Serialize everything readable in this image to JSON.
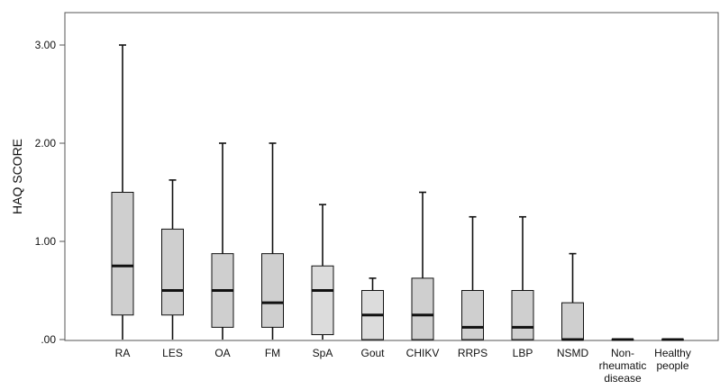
{
  "chart_data": {
    "type": "boxplot",
    "ylabel": "HAQ SCORE",
    "xlabel": "",
    "ylim": [
      0,
      3.4
    ],
    "yticks": [
      0,
      1,
      2,
      3
    ],
    "ytick_labels": [
      ".00",
      "1.00",
      "2.00",
      "3.00"
    ],
    "grid": false,
    "categories": [
      {
        "label_lines": [
          "RA"
        ]
      },
      {
        "label_lines": [
          "LES"
        ]
      },
      {
        "label_lines": [
          "OA"
        ]
      },
      {
        "label_lines": [
          "FM"
        ]
      },
      {
        "label_lines": [
          "SpA"
        ]
      },
      {
        "label_lines": [
          "Gout"
        ]
      },
      {
        "label_lines": [
          "CHIKV"
        ]
      },
      {
        "label_lines": [
          "RRPS"
        ]
      },
      {
        "label_lines": [
          "LBP"
        ]
      },
      {
        "label_lines": [
          "NSMD"
        ]
      },
      {
        "label_lines": [
          "Non-",
          "rheumatic",
          "disease"
        ]
      },
      {
        "label_lines": [
          "Healthy",
          "people"
        ]
      }
    ],
    "boxes": [
      {
        "min": 0,
        "q1": 0.25,
        "median": 0.75,
        "q3": 1.5,
        "max": 3.0
      },
      {
        "min": 0,
        "q1": 0.25,
        "median": 0.5,
        "q3": 1.125,
        "max": 1.625
      },
      {
        "min": 0,
        "q1": 0.125,
        "median": 0.5,
        "q3": 0.875,
        "max": 2.0
      },
      {
        "min": 0,
        "q1": 0.125,
        "median": 0.375,
        "q3": 0.875,
        "max": 2.0
      },
      {
        "min": 0.0,
        "q1": 0.05,
        "median": 0.5,
        "q3": 0.75,
        "max": 1.375
      },
      {
        "min": 0,
        "q1": 0,
        "median": 0.25,
        "q3": 0.5,
        "max": 0.625
      },
      {
        "min": 0,
        "q1": 0,
        "median": 0.25,
        "q3": 0.625,
        "max": 1.5
      },
      {
        "min": 0,
        "q1": 0,
        "median": 0.125,
        "q3": 0.5,
        "max": 1.25
      },
      {
        "min": 0,
        "q1": 0,
        "median": 0.125,
        "q3": 0.5,
        "max": 1.25
      },
      {
        "min": 0,
        "q1": 0,
        "median": 0,
        "q3": 0.375,
        "max": 0.875
      },
      {
        "min": 0,
        "q1": 0,
        "median": 0,
        "q3": 0,
        "max": 0
      },
      {
        "min": 0,
        "q1": 0,
        "median": 0,
        "q3": 0,
        "max": 0
      }
    ],
    "colors": {
      "box_fill": "#cfcfcf",
      "box_fill_light": "#dcdcdc",
      "stroke": "#111111",
      "axis": "#555555"
    }
  }
}
